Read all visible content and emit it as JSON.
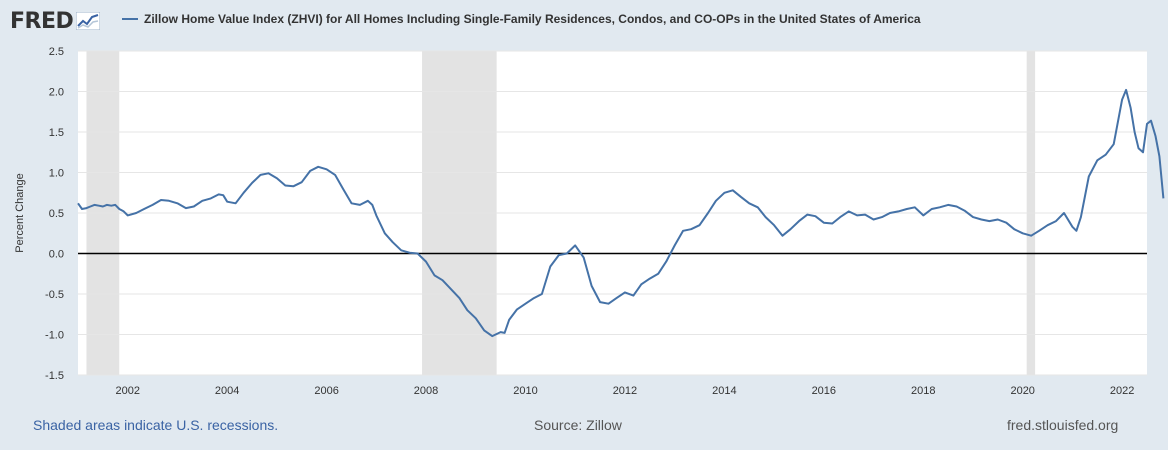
{
  "header": {
    "logo_text": "FRED",
    "logo_icon": "line-chart-icon",
    "series_title": "Zillow Home Value Index (ZHVI) for All Homes Including Single-Family Residences, Condos, and CO-OPs in the United States of America"
  },
  "footer": {
    "recession_note": "Shaded areas indicate U.S. recessions.",
    "source": "Source: Zillow",
    "site": "fred.stlouisfed.org"
  },
  "colors": {
    "background": "#e1e9f0",
    "plot_background": "#ffffff",
    "series_line": "#4572a7",
    "recession_shade": "#e3e3e3",
    "zero_line": "#000000",
    "gridline": "#e6e6e6",
    "note_link": "#3a63a4"
  },
  "chart_data": {
    "type": "line",
    "title": "",
    "xlabel": "",
    "ylabel": "Percent Change",
    "xlim": [
      2001.0,
      2022.5
    ],
    "ylim": [
      -1.5,
      2.5
    ],
    "x_ticks": [
      2002,
      2004,
      2006,
      2008,
      2010,
      2012,
      2014,
      2016,
      2018,
      2020,
      2022
    ],
    "y_ticks": [
      -1.5,
      -1.0,
      -0.5,
      0.0,
      0.5,
      1.0,
      1.5,
      2.0,
      2.5
    ],
    "grid": true,
    "legend": "top",
    "zero_line": 0.0,
    "recessions": [
      [
        2001.17,
        2001.83
      ],
      [
        2007.92,
        2009.42
      ],
      [
        2020.08,
        2020.25
      ]
    ],
    "series": [
      {
        "name": "Zillow Home Value Index (ZHVI) for All Homes Including Single-Family Residences, Condos, and CO-OPs in the United States of America",
        "points": [
          [
            2001.0,
            0.62
          ],
          [
            2001.08,
            0.55
          ],
          [
            2001.17,
            0.56
          ],
          [
            2001.25,
            0.58
          ],
          [
            2001.33,
            0.6
          ],
          [
            2001.42,
            0.59
          ],
          [
            2001.5,
            0.58
          ],
          [
            2001.58,
            0.6
          ],
          [
            2001.67,
            0.59
          ],
          [
            2001.75,
            0.6
          ],
          [
            2001.83,
            0.55
          ],
          [
            2001.92,
            0.52
          ],
          [
            2002.0,
            0.47
          ],
          [
            2002.17,
            0.5
          ],
          [
            2002.33,
            0.55
          ],
          [
            2002.5,
            0.6
          ],
          [
            2002.67,
            0.66
          ],
          [
            2002.83,
            0.65
          ],
          [
            2003.0,
            0.62
          ],
          [
            2003.17,
            0.56
          ],
          [
            2003.33,
            0.58
          ],
          [
            2003.5,
            0.65
          ],
          [
            2003.67,
            0.68
          ],
          [
            2003.83,
            0.73
          ],
          [
            2003.92,
            0.72
          ],
          [
            2004.0,
            0.64
          ],
          [
            2004.17,
            0.62
          ],
          [
            2004.33,
            0.75
          ],
          [
            2004.5,
            0.87
          ],
          [
            2004.67,
            0.97
          ],
          [
            2004.83,
            0.99
          ],
          [
            2005.0,
            0.93
          ],
          [
            2005.17,
            0.84
          ],
          [
            2005.33,
            0.83
          ],
          [
            2005.5,
            0.88
          ],
          [
            2005.67,
            1.02
          ],
          [
            2005.83,
            1.07
          ],
          [
            2006.0,
            1.04
          ],
          [
            2006.17,
            0.97
          ],
          [
            2006.33,
            0.8
          ],
          [
            2006.5,
            0.62
          ],
          [
            2006.67,
            0.6
          ],
          [
            2006.83,
            0.65
          ],
          [
            2006.92,
            0.6
          ],
          [
            2007.0,
            0.47
          ],
          [
            2007.17,
            0.25
          ],
          [
            2007.33,
            0.14
          ],
          [
            2007.5,
            0.04
          ],
          [
            2007.67,
            0.01
          ],
          [
            2007.83,
            0.0
          ],
          [
            2008.0,
            -0.1
          ],
          [
            2008.17,
            -0.27
          ],
          [
            2008.33,
            -0.33
          ],
          [
            2008.5,
            -0.44
          ],
          [
            2008.67,
            -0.55
          ],
          [
            2008.83,
            -0.7
          ],
          [
            2009.0,
            -0.8
          ],
          [
            2009.17,
            -0.95
          ],
          [
            2009.33,
            -1.02
          ],
          [
            2009.5,
            -0.97
          ],
          [
            2009.58,
            -0.98
          ],
          [
            2009.67,
            -0.82
          ],
          [
            2009.83,
            -0.69
          ],
          [
            2010.0,
            -0.62
          ],
          [
            2010.17,
            -0.55
          ],
          [
            2010.33,
            -0.5
          ],
          [
            2010.5,
            -0.16
          ],
          [
            2010.67,
            -0.02
          ],
          [
            2010.83,
            0.0
          ],
          [
            2011.0,
            0.1
          ],
          [
            2011.17,
            -0.05
          ],
          [
            2011.33,
            -0.4
          ],
          [
            2011.5,
            -0.6
          ],
          [
            2011.67,
            -0.62
          ],
          [
            2011.83,
            -0.55
          ],
          [
            2012.0,
            -0.48
          ],
          [
            2012.17,
            -0.52
          ],
          [
            2012.33,
            -0.38
          ],
          [
            2012.5,
            -0.31
          ],
          [
            2012.67,
            -0.25
          ],
          [
            2012.83,
            -0.1
          ],
          [
            2013.0,
            0.1
          ],
          [
            2013.17,
            0.28
          ],
          [
            2013.33,
            0.3
          ],
          [
            2013.5,
            0.35
          ],
          [
            2013.67,
            0.5
          ],
          [
            2013.83,
            0.65
          ],
          [
            2014.0,
            0.75
          ],
          [
            2014.17,
            0.78
          ],
          [
            2014.33,
            0.7
          ],
          [
            2014.5,
            0.62
          ],
          [
            2014.67,
            0.57
          ],
          [
            2014.83,
            0.45
          ],
          [
            2015.0,
            0.35
          ],
          [
            2015.17,
            0.22
          ],
          [
            2015.33,
            0.3
          ],
          [
            2015.5,
            0.4
          ],
          [
            2015.67,
            0.48
          ],
          [
            2015.83,
            0.46
          ],
          [
            2016.0,
            0.38
          ],
          [
            2016.17,
            0.37
          ],
          [
            2016.33,
            0.45
          ],
          [
            2016.5,
            0.52
          ],
          [
            2016.67,
            0.47
          ],
          [
            2016.83,
            0.48
          ],
          [
            2017.0,
            0.42
          ],
          [
            2017.17,
            0.45
          ],
          [
            2017.33,
            0.5
          ],
          [
            2017.5,
            0.52
          ],
          [
            2017.67,
            0.55
          ],
          [
            2017.83,
            0.57
          ],
          [
            2018.0,
            0.47
          ],
          [
            2018.17,
            0.55
          ],
          [
            2018.33,
            0.57
          ],
          [
            2018.5,
            0.6
          ],
          [
            2018.67,
            0.58
          ],
          [
            2018.83,
            0.53
          ],
          [
            2019.0,
            0.45
          ],
          [
            2019.17,
            0.42
          ],
          [
            2019.33,
            0.4
          ],
          [
            2019.5,
            0.42
          ],
          [
            2019.67,
            0.38
          ],
          [
            2019.83,
            0.3
          ],
          [
            2020.0,
            0.25
          ],
          [
            2020.17,
            0.22
          ],
          [
            2020.33,
            0.28
          ],
          [
            2020.5,
            0.35
          ],
          [
            2020.67,
            0.4
          ],
          [
            2020.83,
            0.5
          ],
          [
            2021.0,
            0.33
          ],
          [
            2021.08,
            0.28
          ],
          [
            2021.17,
            0.45
          ],
          [
            2021.33,
            0.95
          ],
          [
            2021.5,
            1.15
          ],
          [
            2021.67,
            1.22
          ],
          [
            2021.83,
            1.35
          ],
          [
            2022.0,
            1.9
          ],
          [
            2022.08,
            2.02
          ],
          [
            2022.17,
            1.8
          ],
          [
            2022.25,
            1.5
          ],
          [
            2022.33,
            1.3
          ],
          [
            2022.42,
            1.25
          ],
          [
            2022.5,
            1.6
          ],
          [
            2022.58,
            1.64
          ],
          [
            2022.67,
            1.45
          ],
          [
            2022.75,
            1.2
          ],
          [
            2022.83,
            0.68
          ]
        ]
      }
    ]
  }
}
